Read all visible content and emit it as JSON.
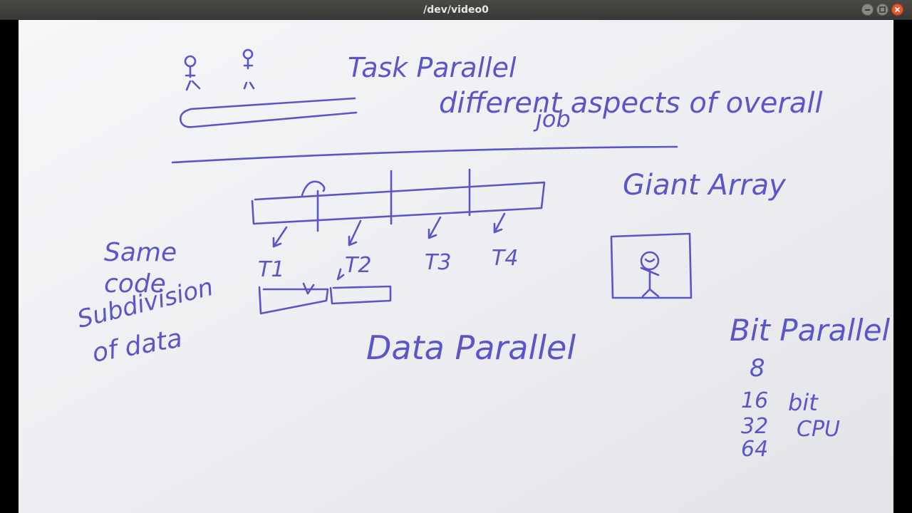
{
  "window": {
    "title": "/dev/video0",
    "controls": [
      "minimize-icon",
      "maximize-icon",
      "close-icon"
    ]
  },
  "whiteboard": {
    "ink_color": "#5b56c8",
    "texts": {
      "task_parallel": "Task Parallel",
      "different_aspects": "different aspects of overall",
      "job": "job",
      "giant_array": "Giant Array",
      "same": "Same",
      "code": "code",
      "subdivision": "Subdivision",
      "of_data": "of data",
      "t1": "T1",
      "t2": "T2",
      "t3": "T3",
      "t4": "T4",
      "data_parallel": "Data Parallel",
      "bit_parallel": "Bit Parallel",
      "n8": "8",
      "n16": "16",
      "n32": "32",
      "n64": "64",
      "bit": "bit",
      "cpu": "CPU"
    }
  }
}
